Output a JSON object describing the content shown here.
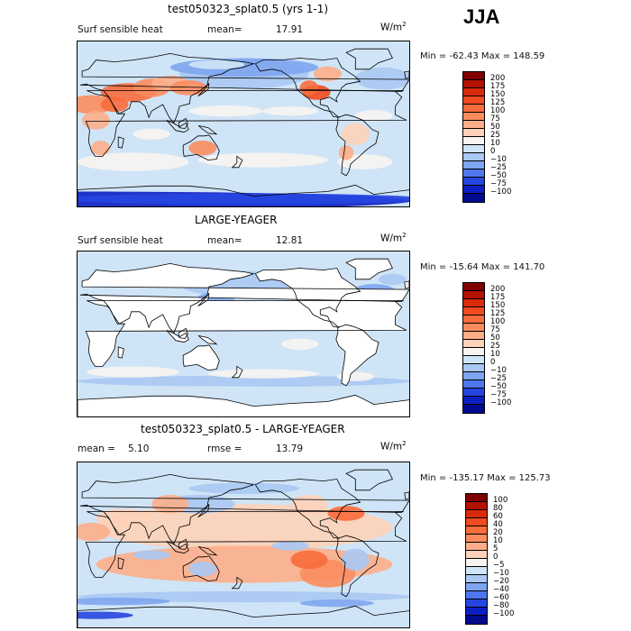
{
  "season": "JJA",
  "units": {
    "base": "W/m",
    "exp": "2"
  },
  "chart_data": [
    {
      "type": "heatmap",
      "title": "test050323_splat0.5 (yrs 1-1)",
      "left_label": "Surf sensible heat",
      "stat_label": "mean=",
      "stat_value": "17.91",
      "minmax": "Min = -62.43 Max = 148.59",
      "levels": [
        "200",
        "175",
        "150",
        "125",
        "100",
        "75",
        "50",
        "25",
        "10",
        "0",
        "−10",
        "−25",
        "−50",
        "−75",
        "−100"
      ],
      "colors": [
        "#7f0000",
        "#b21200",
        "#d92b0c",
        "#ef4a20",
        "#f86b3c",
        "#fb8c5e",
        "#fcae8a",
        "#fdd2b8",
        "#f7f4f2",
        "#cfe4f6",
        "#a9c8f3",
        "#7ea5f0",
        "#4f76ee",
        "#2645e0",
        "#0c1fc2",
        "#000a8f"
      ],
      "land": "colored"
    },
    {
      "type": "heatmap",
      "title": "LARGE-YEAGER",
      "left_label": "Surf sensible heat",
      "stat_label": "mean=",
      "stat_value": "12.81",
      "minmax": "Min = -15.64 Max = 141.70",
      "levels": [
        "200",
        "175",
        "150",
        "125",
        "100",
        "75",
        "50",
        "25",
        "10",
        "0",
        "−10",
        "−25",
        "−50",
        "−75",
        "−100"
      ],
      "colors": [
        "#7f0000",
        "#b21200",
        "#d92b0c",
        "#ef4a20",
        "#f86b3c",
        "#fb8c5e",
        "#fcae8a",
        "#fdd2b8",
        "#f7f4f2",
        "#cfe4f6",
        "#a9c8f3",
        "#7ea5f0",
        "#4f76ee",
        "#2645e0",
        "#0c1fc2",
        "#000a8f"
      ],
      "land": "blank"
    },
    {
      "type": "heatmap",
      "title": "test050323_splat0.5 - LARGE-YEAGER",
      "left_label": "mean =",
      "stat_label": "rmse =",
      "left_value": "5.10",
      "stat_value": "13.79",
      "minmax": "Min = -135.17 Max = 125.73",
      "levels": [
        "100",
        "80",
        "60",
        "40",
        "20",
        "10",
        "5",
        "0",
        "−5",
        "−10",
        "−20",
        "−40",
        "−60",
        "−80",
        "−100"
      ],
      "colors": [
        "#7f0000",
        "#b21200",
        "#d92b0c",
        "#ef4a20",
        "#f86b3c",
        "#fb8c5e",
        "#fcae8a",
        "#fdd2b8",
        "#f7f4f2",
        "#cfe4f6",
        "#a9c8f3",
        "#7ea5f0",
        "#4f76ee",
        "#2645e0",
        "#0c1fc2",
        "#000a8f"
      ],
      "land": "colored"
    }
  ]
}
